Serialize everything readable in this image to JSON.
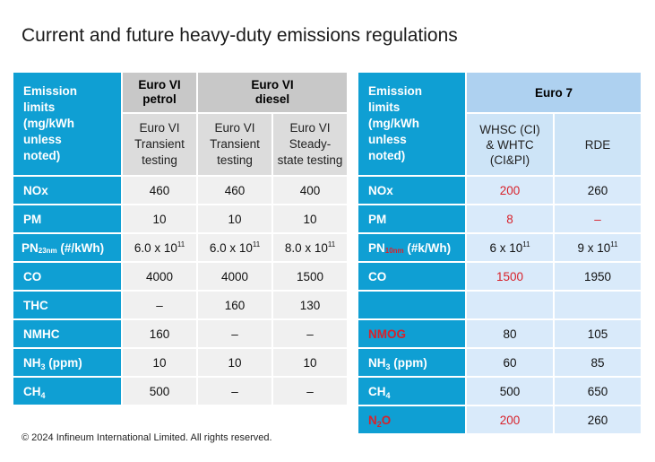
{
  "title": "Current and future heavy-duty emissions regulations",
  "footer": "© 2024 Infineum International Limited. All rights reserved.",
  "colors": {
    "label_bg": "#0f9fd3",
    "gray_header": "#c8c8c8",
    "blue_header": "#aed1f0",
    "highlight_red": "#d8222b"
  },
  "table_current": {
    "corner_label": [
      "Emission",
      "limits",
      "(mg/kWh",
      "unless",
      "noted)"
    ],
    "group_petrol": [
      "Euro VI",
      "petrol"
    ],
    "group_diesel": [
      "Euro VI",
      "diesel"
    ],
    "subheaders": [
      [
        "Euro VI",
        "Transient",
        "testing"
      ],
      [
        "Euro VI",
        "Transient",
        "testing"
      ],
      [
        "Euro VI",
        "Steady-",
        "state testing"
      ]
    ],
    "rows": [
      {
        "label": "NOx",
        "values": [
          "460",
          "460",
          "400"
        ]
      },
      {
        "label": "PM",
        "values": [
          "10",
          "10",
          "10"
        ]
      },
      {
        "label_main": "PN",
        "label_sub": "23nm",
        "label_rest": " (#/kWh)",
        "values": [
          [
            "6.0 x 10",
            "11"
          ],
          [
            "6.0 x 10",
            "11"
          ],
          [
            "8.0 x 10",
            "11"
          ]
        ]
      },
      {
        "label": "CO",
        "values": [
          "4000",
          "4000",
          "1500"
        ]
      },
      {
        "label": "THC",
        "values": [
          "–",
          "160",
          "130"
        ]
      },
      {
        "label": "NMHC",
        "values": [
          "160",
          "–",
          "–"
        ]
      },
      {
        "label_main": "NH",
        "label_sub": "3",
        "label_rest": " (ppm)",
        "values": [
          "10",
          "10",
          "10"
        ]
      },
      {
        "label_main": "CH",
        "label_sub": "4",
        "label_rest": "",
        "values": [
          "500",
          "–",
          "–"
        ]
      }
    ]
  },
  "table_future": {
    "corner_label": [
      "Emission",
      "limits",
      "(mg/kWh",
      "unless",
      "noted)"
    ],
    "group": "Euro 7",
    "subheaders": [
      [
        "WHSC (CI)",
        "& WHTC",
        "(CI&PI)"
      ],
      [
        "RDE"
      ]
    ],
    "rows": [
      {
        "label": "NOx",
        "values": [
          "200",
          "260"
        ]
      },
      {
        "label": "PM",
        "values": [
          "8",
          "–"
        ]
      },
      {
        "label_main": "PN",
        "label_sub": "10nm",
        "label_rest": " (#k/Wh)",
        "values": [
          [
            "6 x 10",
            "11"
          ],
          [
            "9 x 10",
            "11"
          ]
        ]
      },
      {
        "label": "CO",
        "values": [
          "1500",
          "1950"
        ]
      },
      {
        "label": "",
        "values": [
          "",
          ""
        ]
      },
      {
        "label": "NMOG",
        "values": [
          "80",
          "105"
        ]
      },
      {
        "label_main": "NH",
        "label_sub": "3",
        "label_rest": " (ppm)",
        "values": [
          "60",
          "85"
        ]
      },
      {
        "label_main": "CH",
        "label_sub": "4",
        "label_rest": "",
        "values": [
          "500",
          "650"
        ]
      },
      {
        "label_main": "N",
        "label_sub": "2",
        "label_rest": "O",
        "values": [
          "200",
          "260"
        ]
      }
    ]
  }
}
